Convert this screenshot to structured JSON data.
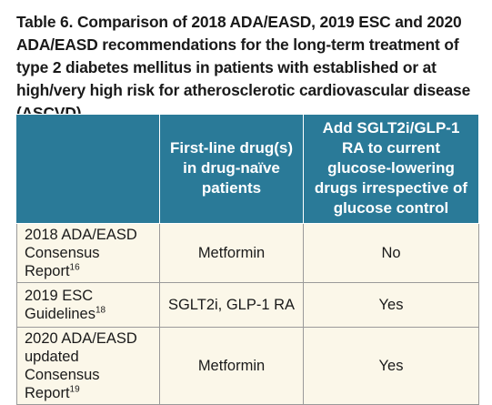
{
  "caption": "Table 6. Comparison of 2018 ADA/EASD, 2019 ESC and 2020 ADA/EASD recommendations for the long-term treatment of type 2 diabetes mellitus in patients with established or at high/very high risk for atherosclerotic cardiovascular disease (ASCVD).",
  "table": {
    "headers": [
      "",
      "First-line drug(s) in drug-naïve patients",
      "Add SGLT2i/GLP-1 RA to current glucose-lowering drugs irrespective of glucose control"
    ],
    "rows": [
      {
        "label": "2018 ADA/EASD Consensus Report",
        "ref": "16",
        "first_line": "Metformin",
        "add_on": "No"
      },
      {
        "label": "2019 ESC Guidelines",
        "ref": "18",
        "first_line": "SGLT2i, GLP-1 RA",
        "add_on": "Yes"
      },
      {
        "label": "2020 ADA/EASD updated Consensus Report",
        "ref": "19",
        "first_line": "Metformin",
        "add_on": "Yes"
      }
    ]
  },
  "colors": {
    "header_bg": "#2a7a98",
    "header_text": "#ffffff",
    "cell_bg": "#fbf7e9",
    "border": "#9a9a9a"
  }
}
